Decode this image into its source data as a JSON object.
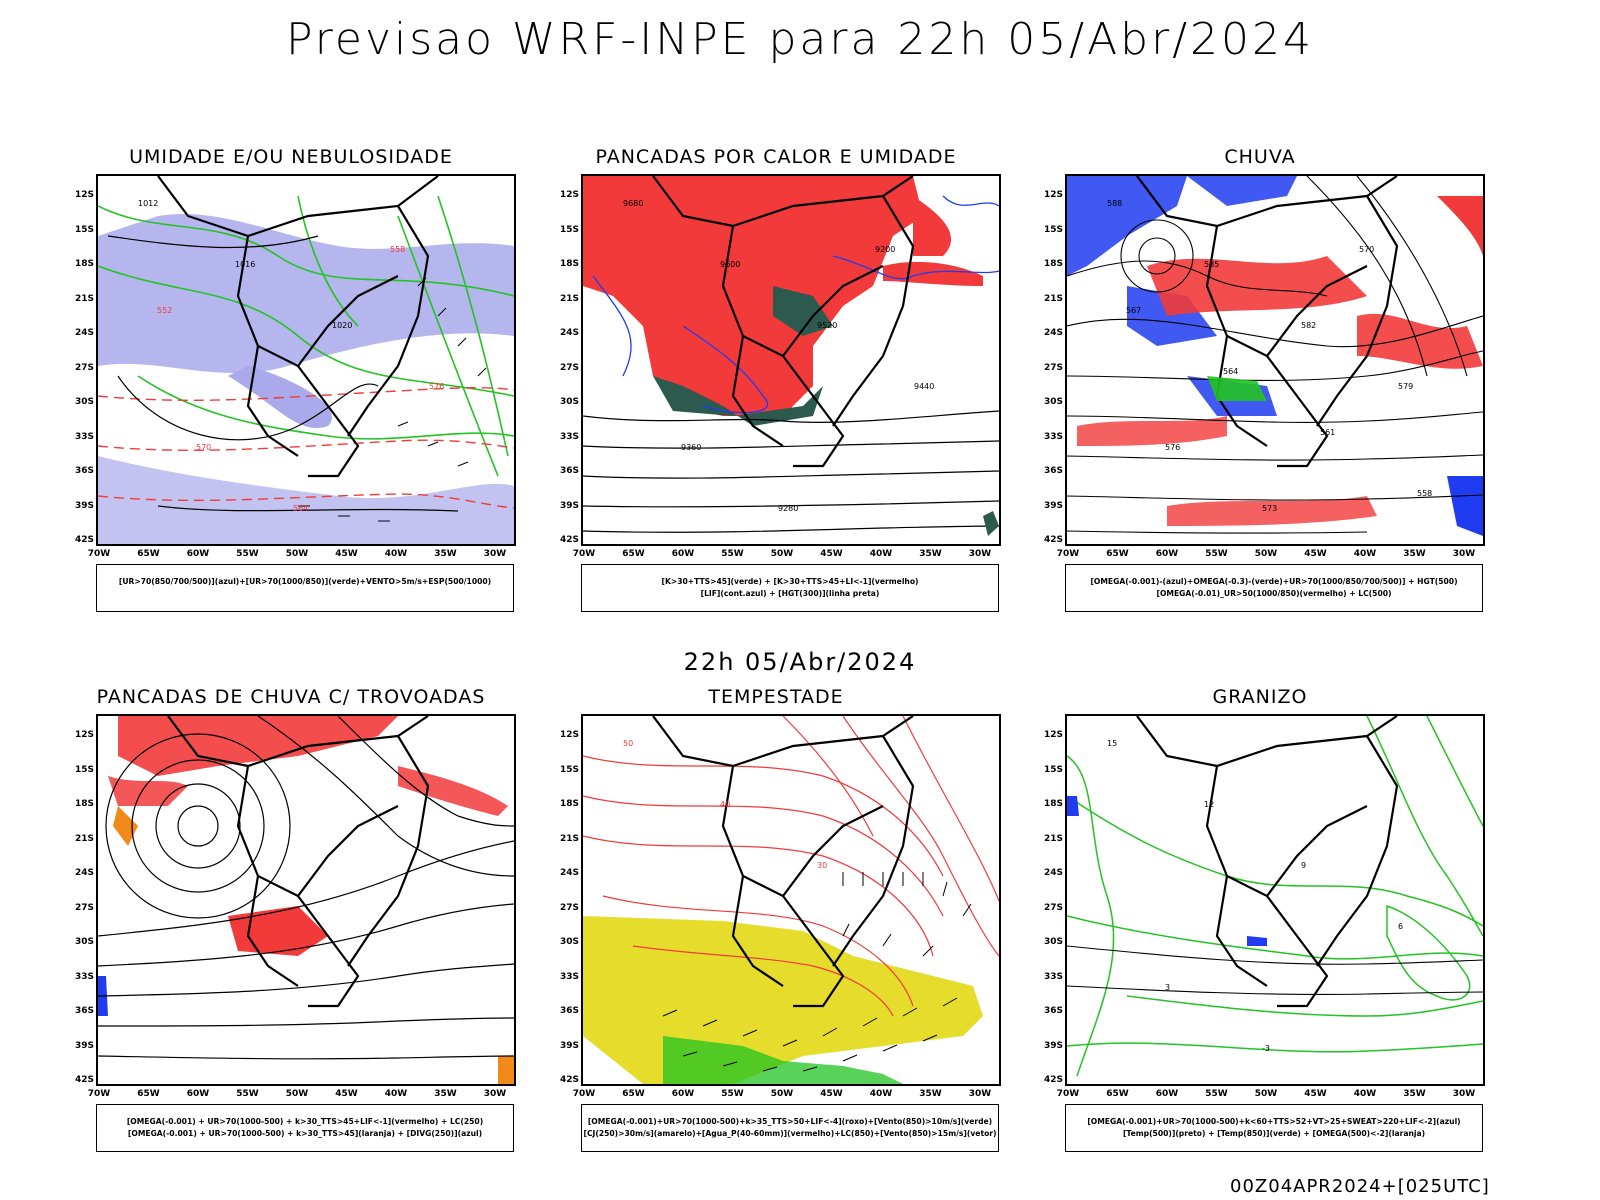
{
  "title": "Previsao WRF-INPE  para 22h 05/Abr/2024",
  "mid_title": "22h 05/Abr/2024",
  "footer": "00Z04APR2024+[025UTC]",
  "lat_labels": [
    "12S",
    "15S",
    "18S",
    "21S",
    "24S",
    "27S",
    "30S",
    "33S",
    "36S",
    "39S",
    "42S"
  ],
  "lon_labels": [
    "70W",
    "65W",
    "60W",
    "55W",
    "50W",
    "45W",
    "40W",
    "35W",
    "30W"
  ],
  "colors": {
    "blue": "#1f3cf0",
    "green": "#22c322",
    "red": "#f23a3a",
    "lavender": "#a9a9ec",
    "yellow": "#e6dc2c",
    "orange": "#f28a1a",
    "darkgreen": "#2d5a4e",
    "border": "#000000"
  },
  "panels": [
    {
      "title": "UMIDADE E/OU NEBULOSIDADE",
      "legend": [
        "[UR>70(850/700/500)](azul)+[UR>70(1000/850)](verde)+VENTO>5m/s+ESP(500/1000)"
      ],
      "contour_labels": [
        "1012",
        "1016",
        "1020",
        "576",
        "570",
        "564",
        "558",
        "552"
      ]
    },
    {
      "title": "PANCADAS POR CALOR E UMIDADE",
      "legend": [
        "[K>30+TTS>45](verde) + [K>30+TTS>45+LI<-1](vermelho)",
        "[LIF](cont.azul) + [HGT(300)](linha preta)"
      ],
      "contour_labels": [
        "9680",
        "9600",
        "9520",
        "9440",
        "9360",
        "9280",
        "9200"
      ]
    },
    {
      "title": "CHUVA",
      "legend": [
        "[OMEGA(-0.001)-(azul)+OMEGA(-0.3)-(verde)+UR>70(1000/850/700/500)] + HGT(500)",
        "[OMEGA(-0.01)_UR>50(1000/850)(vermelho) + LC(500)"
      ],
      "contour_labels": [
        "588",
        "585",
        "582",
        "579",
        "576",
        "573",
        "570",
        "567",
        "564",
        "561",
        "558"
      ]
    },
    {
      "title": "PANCADAS DE CHUVA C/ TROVOADAS",
      "legend": [
        "[OMEGA(-0.001) + UR>70(1000-500) + k>30_TTS>45+LIF<-1](vermelho) + LC(250)",
        "[OMEGA(-0.001) + UR>70(1000-500) + k>30_TTS>45](laranja) + [DIVG(250)](azul)"
      ],
      "contour_labels": []
    },
    {
      "title": "TEMPESTADE",
      "legend": [
        "[OMEGA(-0.001)+UR>70(1000-500)+k>35_TTS>50+LIF<-4](roxo)+[Vento(850)>10m/s](verde)",
        "[CJ(250)>30m/s](amarelo)+[Agua_P(40-60mm)](vermelho)+LC(850)+[Vento(850)>15m/s](vetor)"
      ],
      "contour_labels": [
        "50",
        "40",
        "30"
      ]
    },
    {
      "title": "GRANIZO",
      "legend": [
        "[OMEGA(-0.001)+UR>70(1000-500)+k<60+TTS>52+VT>25+SWEAT>220+LIF<-2](azul)",
        "[Temp(500)](preto) + [Temp(850)](verde) + [OMEGA(500)<-2](laranja)"
      ],
      "contour_labels": [
        "15",
        "12",
        "9",
        "6",
        "3",
        "-3"
      ]
    }
  ]
}
